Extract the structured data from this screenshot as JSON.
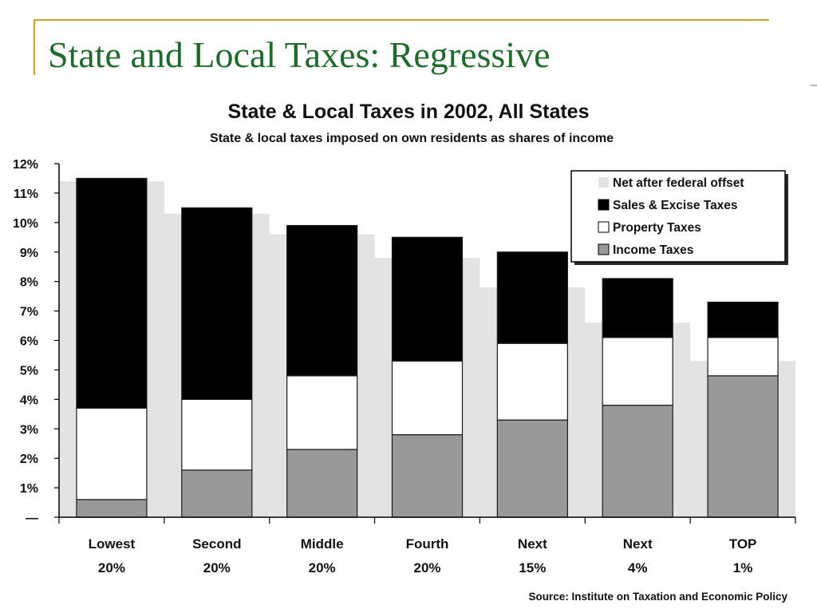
{
  "slide": {
    "title": "State and Local Taxes: Regressive"
  },
  "chart_data": {
    "type": "bar",
    "stacked": true,
    "title": "State & Local Taxes in 2002, All States",
    "subtitle": "State & local taxes imposed on own residents as shares of income",
    "source": "Source: Institute on Taxation and Economic Policy",
    "categories": [
      [
        "Lowest",
        "20%"
      ],
      [
        "Second",
        "20%"
      ],
      [
        "Middle",
        "20%"
      ],
      [
        "Fourth",
        "20%"
      ],
      [
        "Next",
        "15%"
      ],
      [
        "Next",
        "4%"
      ],
      [
        "TOP",
        "1%"
      ]
    ],
    "series": [
      {
        "name": "Income Taxes",
        "values": [
          0.6,
          1.6,
          2.3,
          2.8,
          3.3,
          3.8,
          4.8
        ],
        "color": "#999999"
      },
      {
        "name": "Property Taxes",
        "values": [
          3.1,
          2.4,
          2.5,
          2.5,
          2.6,
          2.3,
          1.3
        ],
        "color": "#ffffff"
      },
      {
        "name": "Sales & Excise Taxes",
        "values": [
          7.8,
          6.5,
          5.1,
          4.2,
          3.1,
          2.0,
          1.2
        ],
        "color": "#000000"
      }
    ],
    "net_after_federal_offset": {
      "name": "Net after federal offset",
      "values": [
        11.4,
        10.3,
        9.6,
        8.8,
        7.8,
        6.6,
        5.3
      ],
      "color": "#e3e3e3"
    },
    "legend": [
      {
        "name": "Net after federal offset",
        "color": "#e3e3e3"
      },
      {
        "name": "Sales & Excise Taxes",
        "color": "#000000"
      },
      {
        "name": "Property Taxes",
        "color": "#ffffff"
      },
      {
        "name": "Income Taxes",
        "color": "#999999"
      }
    ],
    "legend_position": "top-right",
    "y_ticks": [
      "—",
      "1%",
      "2%",
      "3%",
      "4%",
      "5%",
      "6%",
      "7%",
      "8%",
      "9%",
      "10%",
      "11%",
      "12%"
    ],
    "ylim": [
      0,
      12
    ],
    "grid": false
  }
}
